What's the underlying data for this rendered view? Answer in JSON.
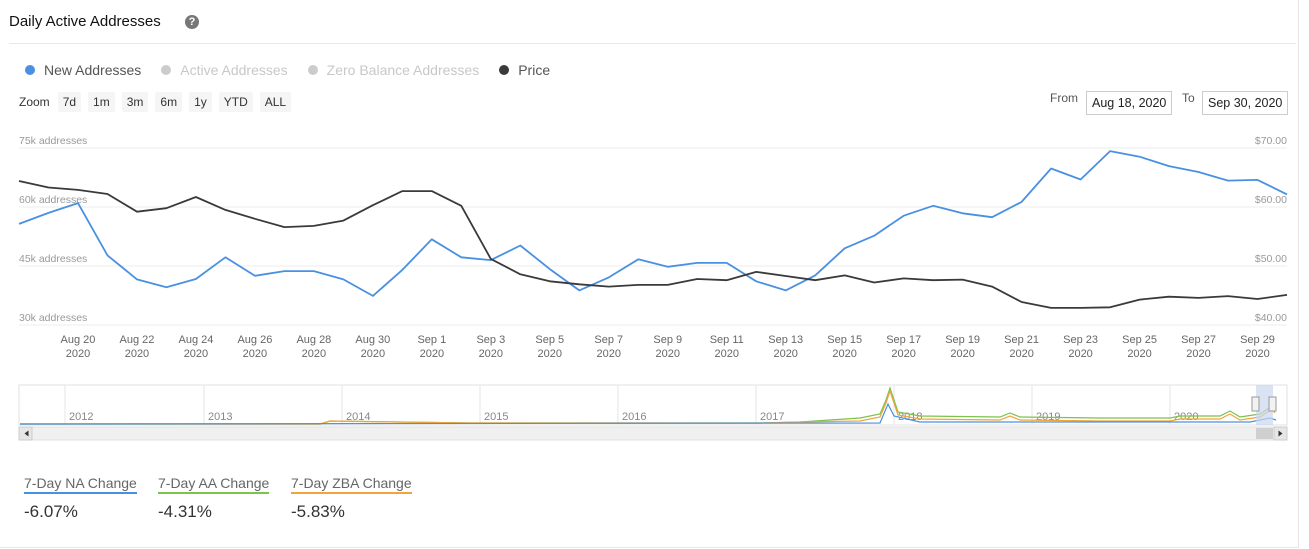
{
  "title": "Daily Active Addresses",
  "help_icon": "question-circle-icon",
  "legend": [
    {
      "label": "New Addresses",
      "color": "#4a90e2",
      "active": true
    },
    {
      "label": "Active Addresses",
      "color": "#cccccc",
      "active": false
    },
    {
      "label": "Zero Balance Addresses",
      "color": "#cccccc",
      "active": false
    },
    {
      "label": "Price",
      "color": "#3a3a3a",
      "active": true
    }
  ],
  "zoom": {
    "label": "Zoom",
    "buttons": [
      "7d",
      "1m",
      "3m",
      "6m",
      "1y",
      "YTD",
      "ALL"
    ]
  },
  "range": {
    "from_label": "From",
    "from_value": "Aug 18, 2020",
    "to_label": "To",
    "to_value": "Sep 30, 2020"
  },
  "chart_data": {
    "type": "line",
    "left_axis": {
      "ticks": [
        "75k addresses",
        "60k addresses",
        "45k addresses",
        "30k addresses"
      ],
      "values": [
        75000,
        60000,
        45000,
        30000
      ],
      "range": [
        30000,
        75000
      ]
    },
    "right_axis": {
      "ticks": [
        "$70.00",
        "$60.00",
        "$50.00",
        "$40.00"
      ],
      "values": [
        70,
        60,
        50,
        40
      ],
      "range": [
        40,
        70
      ]
    },
    "x_labels": [
      [
        "Aug 20",
        "2020"
      ],
      [
        "Aug 22",
        "2020"
      ],
      [
        "Aug 24",
        "2020"
      ],
      [
        "Aug 26",
        "2020"
      ],
      [
        "Aug 28",
        "2020"
      ],
      [
        "Aug 30",
        "2020"
      ],
      [
        "Sep 1",
        "2020"
      ],
      [
        "Sep 3",
        "2020"
      ],
      [
        "Sep 5",
        "2020"
      ],
      [
        "Sep 7",
        "2020"
      ],
      [
        "Sep 9",
        "2020"
      ],
      [
        "Sep 11",
        "2020"
      ],
      [
        "Sep 13",
        "2020"
      ],
      [
        "Sep 15",
        "2020"
      ],
      [
        "Sep 17",
        "2020"
      ],
      [
        "Sep 19",
        "2020"
      ],
      [
        "Sep 21",
        "2020"
      ],
      [
        "Sep 23",
        "2020"
      ],
      [
        "Sep 25",
        "2020"
      ],
      [
        "Sep 27",
        "2020"
      ],
      [
        "Sep 29",
        "2020"
      ]
    ],
    "x": [
      "2020-08-18",
      "2020-08-19",
      "2020-08-20",
      "2020-08-21",
      "2020-08-22",
      "2020-08-23",
      "2020-08-24",
      "2020-08-25",
      "2020-08-26",
      "2020-08-27",
      "2020-08-28",
      "2020-08-29",
      "2020-08-30",
      "2020-08-31",
      "2020-09-01",
      "2020-09-02",
      "2020-09-03",
      "2020-09-04",
      "2020-09-05",
      "2020-09-06",
      "2020-09-07",
      "2020-09-08",
      "2020-09-09",
      "2020-09-10",
      "2020-09-11",
      "2020-09-12",
      "2020-09-13",
      "2020-09-14",
      "2020-09-15",
      "2020-09-16",
      "2020-09-17",
      "2020-09-18",
      "2020-09-19",
      "2020-09-20",
      "2020-09-21",
      "2020-09-22",
      "2020-09-23",
      "2020-09-24",
      "2020-09-25",
      "2020-09-26",
      "2020-09-27",
      "2020-09-28",
      "2020-09-29",
      "2020-09-30"
    ],
    "series": [
      {
        "name": "New Addresses",
        "axis": "left",
        "color": "#4a90e2",
        "values": [
          55700,
          58500,
          61000,
          47700,
          41600,
          39600,
          41700,
          47200,
          42500,
          43700,
          43700,
          41600,
          37400,
          44000,
          51800,
          47200,
          46500,
          50200,
          44200,
          38800,
          42100,
          46700,
          44800,
          45800,
          45800,
          41100,
          38800,
          42600,
          49500,
          52700,
          57800,
          60300,
          58400,
          57400,
          61300,
          69800,
          67000,
          74200,
          72800,
          70400,
          68900,
          66700,
          66900,
          63200
        ]
      },
      {
        "name": "Price",
        "axis": "right",
        "color": "#3a3a3a",
        "values": [
          64.4,
          63.3,
          62.9,
          62.2,
          59.2,
          59.8,
          61.7,
          59.5,
          58.0,
          56.6,
          56.8,
          57.7,
          60.3,
          62.7,
          62.7,
          60.2,
          51.2,
          48.6,
          47.4,
          46.9,
          46.5,
          46.8,
          46.8,
          47.8,
          47.6,
          49.0,
          48.3,
          47.6,
          48.4,
          47.2,
          47.9,
          47.6,
          47.7,
          46.5,
          43.9,
          42.9,
          42.9,
          43.0,
          44.3,
          44.8,
          44.6,
          44.9,
          44.4,
          45.1
        ]
      }
    ],
    "grid": true
  },
  "navigator": {
    "years": [
      "2012",
      "2013",
      "2014",
      "2015",
      "2016",
      "2017",
      "2018",
      "2019",
      "2020"
    ]
  },
  "stats": [
    {
      "label": "7-Day NA Change",
      "value": "-6.07%",
      "color": "#4a90e2"
    },
    {
      "label": "7-Day AA Change",
      "value": "-4.31%",
      "color": "#7cc24b"
    },
    {
      "label": "7-Day ZBA Change",
      "value": "-5.83%",
      "color": "#f0a43a"
    }
  ]
}
